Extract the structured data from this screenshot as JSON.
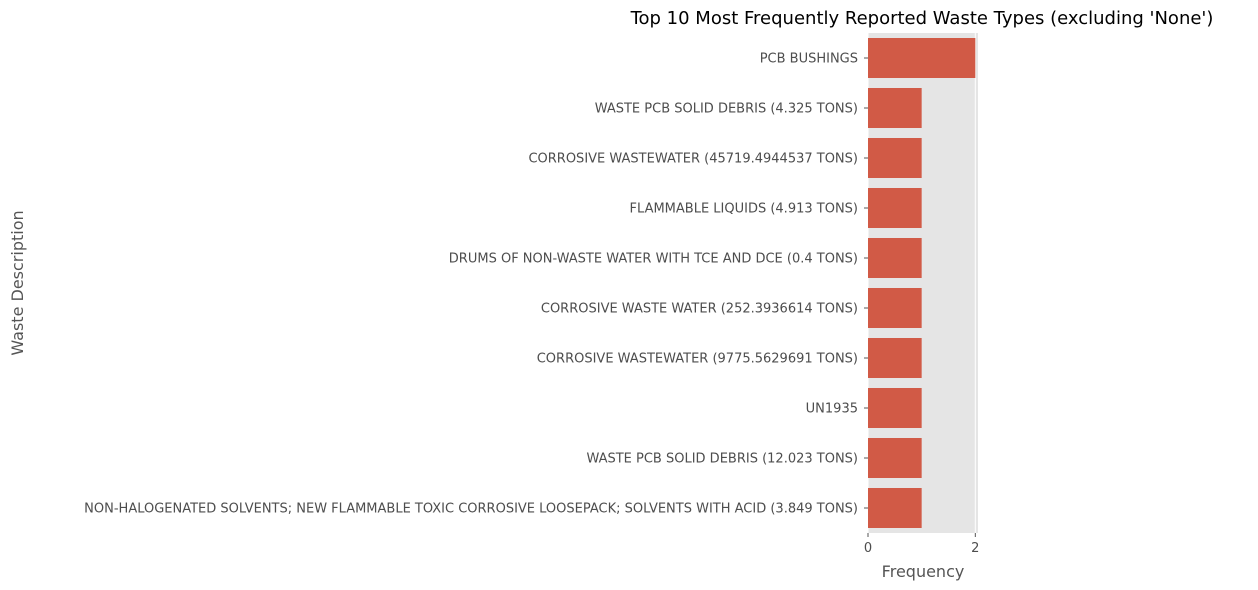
{
  "colors": {
    "bar": "#d15a46",
    "plot_background": "#e5e5e5",
    "grid": "#ffffff",
    "text": "#4d4d4d"
  },
  "chart_data": {
    "type": "bar",
    "orientation": "horizontal",
    "title": "Top 10 Most Frequently Reported Waste Types (excluding 'None')",
    "xlabel": "Frequency",
    "ylabel": "Waste Description",
    "categories": [
      "PCB BUSHINGS",
      "WASTE PCB SOLID DEBRIS (4.325 TONS)",
      "CORROSIVE WASTEWATER (45719.4944537 TONS)",
      "FLAMMABLE LIQUIDS (4.913 TONS)",
      "DRUMS OF NON-WASTE WATER WITH TCE AND DCE (0.4 TONS)",
      "CORROSIVE WASTE WATER (252.3936614 TONS)",
      "CORROSIVE WASTEWATER (9775.5629691 TONS)",
      "UN1935",
      "WASTE PCB SOLID DEBRIS (12.023 TONS)",
      "NON-HALOGENATED SOLVENTS; NEW FLAMMABLE TOXIC CORROSIVE LOOSEPACK; SOLVENTS WITH ACID (3.849 TONS)"
    ],
    "values": [
      2,
      1,
      1,
      1,
      1,
      1,
      1,
      1,
      1,
      1
    ],
    "xlim": [
      0,
      2.05
    ],
    "xticks": [
      0,
      2
    ],
    "grid": true
  }
}
